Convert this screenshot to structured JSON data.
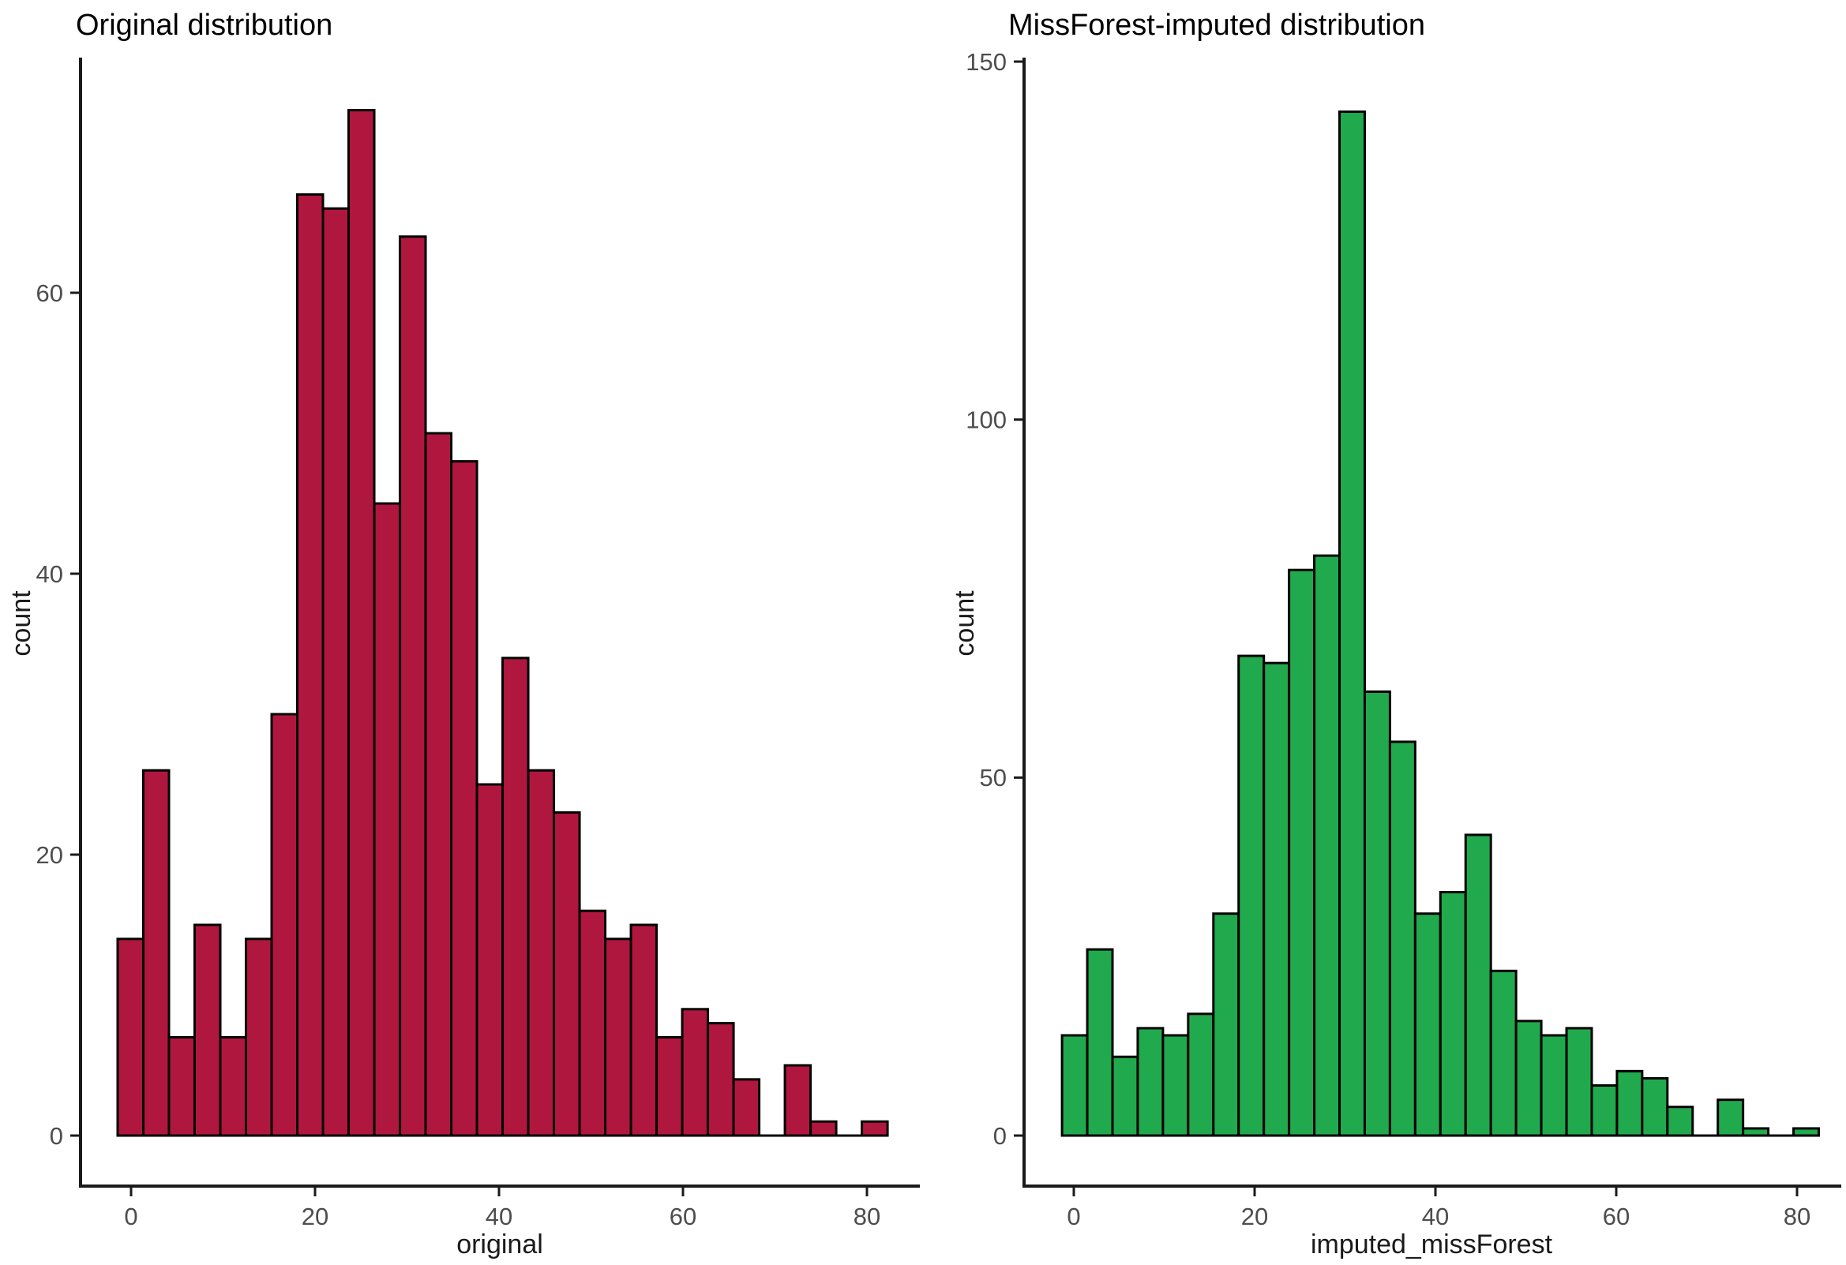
{
  "figure": {
    "background": "#ffffff"
  },
  "chart_data": [
    {
      "type": "bar",
      "subtype": "histogram",
      "title": "Original distribution",
      "xlabel": "original",
      "ylabel": "count",
      "bin_start": -1.46,
      "bin_width": 2.79,
      "bin_count": 30,
      "counts": [
        14,
        26,
        7,
        15,
        7,
        14,
        30,
        67,
        66,
        73,
        45,
        64,
        50,
        48,
        25,
        34,
        26,
        23,
        16,
        14,
        15,
        7,
        9,
        8,
        4,
        0,
        5,
        1,
        0,
        1
      ],
      "x_ticks": [
        0,
        20,
        40,
        60,
        80
      ],
      "y_ticks": [
        0,
        20,
        40,
        60
      ],
      "xlim": [
        -5.6,
        85.5
      ],
      "ylim": [
        0,
        76.7
      ],
      "grid": false,
      "legend": "none",
      "bar_fill": "#B0173F",
      "bar_stroke": "#000000",
      "axis_color": "#1a1a1a",
      "tick_label_color": "#4d4d4d"
    },
    {
      "type": "bar",
      "subtype": "histogram",
      "title": "MissForest-imputed distribution",
      "xlabel": "imputed_missForest",
      "ylabel": "count",
      "bin_start": -1.3,
      "bin_width": 2.79,
      "bin_count": 30,
      "counts": [
        14,
        26,
        11,
        15,
        14,
        17,
        31,
        67,
        66,
        79,
        81,
        143,
        62,
        55,
        31,
        34,
        42,
        23,
        16,
        14,
        15,
        7,
        9,
        8,
        4,
        0,
        5,
        1,
        0,
        1
      ],
      "x_ticks": [
        0,
        20,
        40,
        60,
        80
      ],
      "y_ticks": [
        0,
        50,
        100,
        150
      ],
      "xlim": [
        -5.5,
        90.4
      ],
      "ylim": [
        0,
        150.6
      ],
      "grid": false,
      "legend": "none",
      "bar_fill": "#21A94D",
      "bar_stroke": "#000000",
      "axis_color": "#1a1a1a",
      "tick_label_color": "#4d4d4d"
    }
  ]
}
